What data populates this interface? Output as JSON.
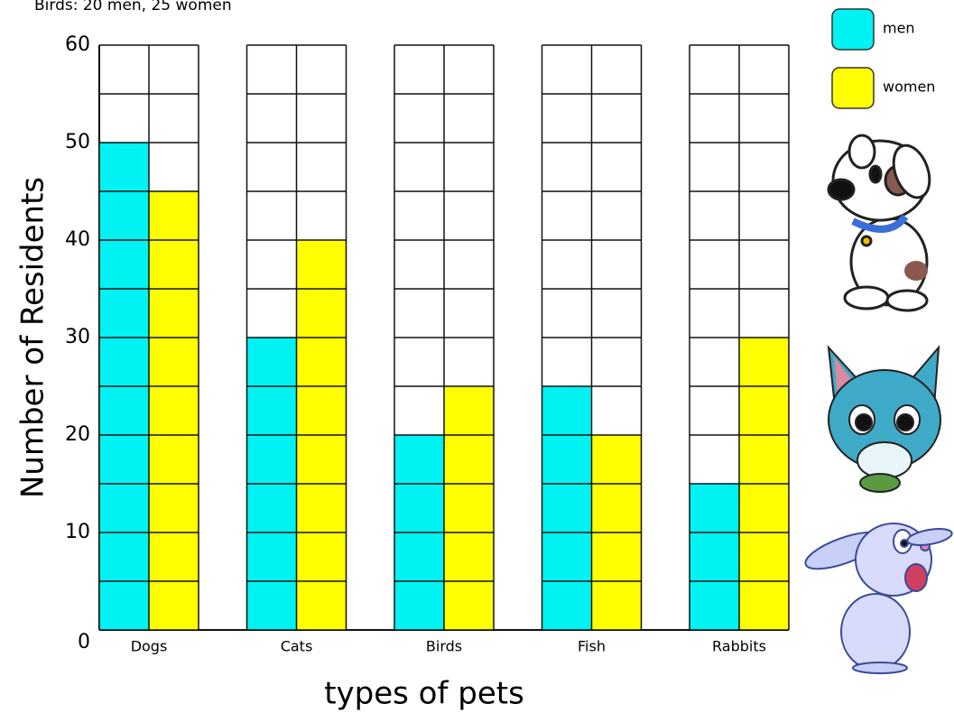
{
  "chart_data": {
    "type": "bar",
    "annotation": "Birds: 20 men, 25 women",
    "y_label": "Number of Residents",
    "x_label": "types of pets",
    "categories": [
      "Dogs",
      "Cats",
      "Birds",
      "Fish",
      "Rabbits"
    ],
    "series": [
      {
        "name": "men",
        "color": "#00f2f2",
        "values": [
          50,
          30,
          20,
          25,
          15
        ]
      },
      {
        "name": "women",
        "color": "#ffff00",
        "values": [
          45,
          40,
          25,
          20,
          30
        ]
      }
    ],
    "ylim": [
      0,
      60
    ],
    "yticks": [
      0,
      10,
      20,
      30,
      40,
      50,
      60
    ],
    "minor_yticks": [
      5,
      15,
      25,
      35,
      45,
      55
    ],
    "grid": true
  }
}
